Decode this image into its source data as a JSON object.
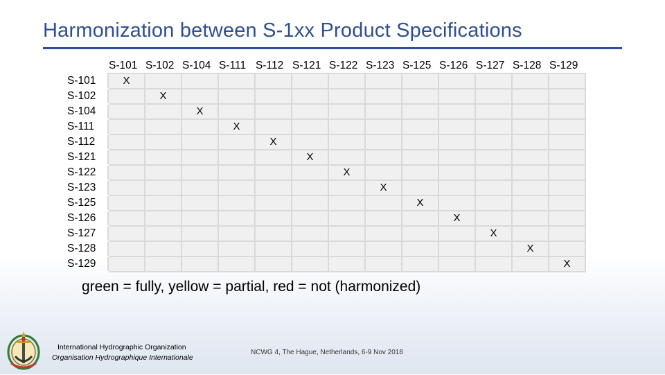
{
  "slide": {
    "title": "Harmonization between S-1xx Product Specifications",
    "legend": "green = fully, yellow = partial, red = not (harmonized)"
  },
  "matrix": {
    "columns": [
      "S-101",
      "S-102",
      "S-104",
      "S-111",
      "S-112",
      "S-121",
      "S-122",
      "S-123",
      "S-125",
      "S-126",
      "S-127",
      "S-128",
      "S-129"
    ],
    "rows": [
      {
        "label": "S-101",
        "cells": [
          "X",
          "",
          "",
          "",
          "",
          "",
          "",
          "",
          "",
          "",
          "",
          "",
          ""
        ]
      },
      {
        "label": "S-102",
        "cells": [
          "",
          "X",
          "",
          "",
          "",
          "",
          "",
          "",
          "",
          "",
          "",
          "",
          ""
        ]
      },
      {
        "label": "S-104",
        "cells": [
          "",
          "",
          "X",
          "",
          "",
          "",
          "",
          "",
          "",
          "",
          "",
          "",
          ""
        ]
      },
      {
        "label": "S-111",
        "cells": [
          "",
          "",
          "",
          "X",
          "",
          "",
          "",
          "",
          "",
          "",
          "",
          "",
          ""
        ]
      },
      {
        "label": "S-112",
        "cells": [
          "",
          "",
          "",
          "",
          "X",
          "",
          "",
          "",
          "",
          "",
          "",
          "",
          ""
        ]
      },
      {
        "label": "S-121",
        "cells": [
          "",
          "",
          "",
          "",
          "",
          "X",
          "",
          "",
          "",
          "",
          "",
          "",
          ""
        ]
      },
      {
        "label": "S-122",
        "cells": [
          "",
          "",
          "",
          "",
          "",
          "",
          "X",
          "",
          "",
          "",
          "",
          "",
          ""
        ]
      },
      {
        "label": "S-123",
        "cells": [
          "",
          "",
          "",
          "",
          "",
          "",
          "",
          "X",
          "",
          "",
          "",
          "",
          ""
        ]
      },
      {
        "label": "S-125",
        "cells": [
          "",
          "",
          "",
          "",
          "",
          "",
          "",
          "",
          "X",
          "",
          "",
          "",
          ""
        ]
      },
      {
        "label": "S-126",
        "cells": [
          "",
          "",
          "",
          "",
          "",
          "",
          "",
          "",
          "",
          "X",
          "",
          "",
          ""
        ]
      },
      {
        "label": "S-127",
        "cells": [
          "",
          "",
          "",
          "",
          "",
          "",
          "",
          "",
          "",
          "",
          "X",
          "",
          ""
        ]
      },
      {
        "label": "S-128",
        "cells": [
          "",
          "",
          "",
          "",
          "",
          "",
          "",
          "",
          "",
          "",
          "",
          "X",
          ""
        ]
      },
      {
        "label": "S-129",
        "cells": [
          "",
          "",
          "",
          "",
          "",
          "",
          "",
          "",
          "",
          "",
          "",
          "",
          "X"
        ]
      }
    ]
  },
  "footer": {
    "org_name_en": "International Hydrographic Organization",
    "org_name_fr": "Organisation Hydrographique Internationale",
    "meeting": "NCWG 4, The Hague, Netherlands, 6-9 Nov 2018",
    "logo_icon": "iho-emblem-icon"
  },
  "colors": {
    "title": "#2f4f8f",
    "rule": "#2a4f9e",
    "cell_fill": "#f0f0f0",
    "cell_border": "#d9d9d9"
  }
}
